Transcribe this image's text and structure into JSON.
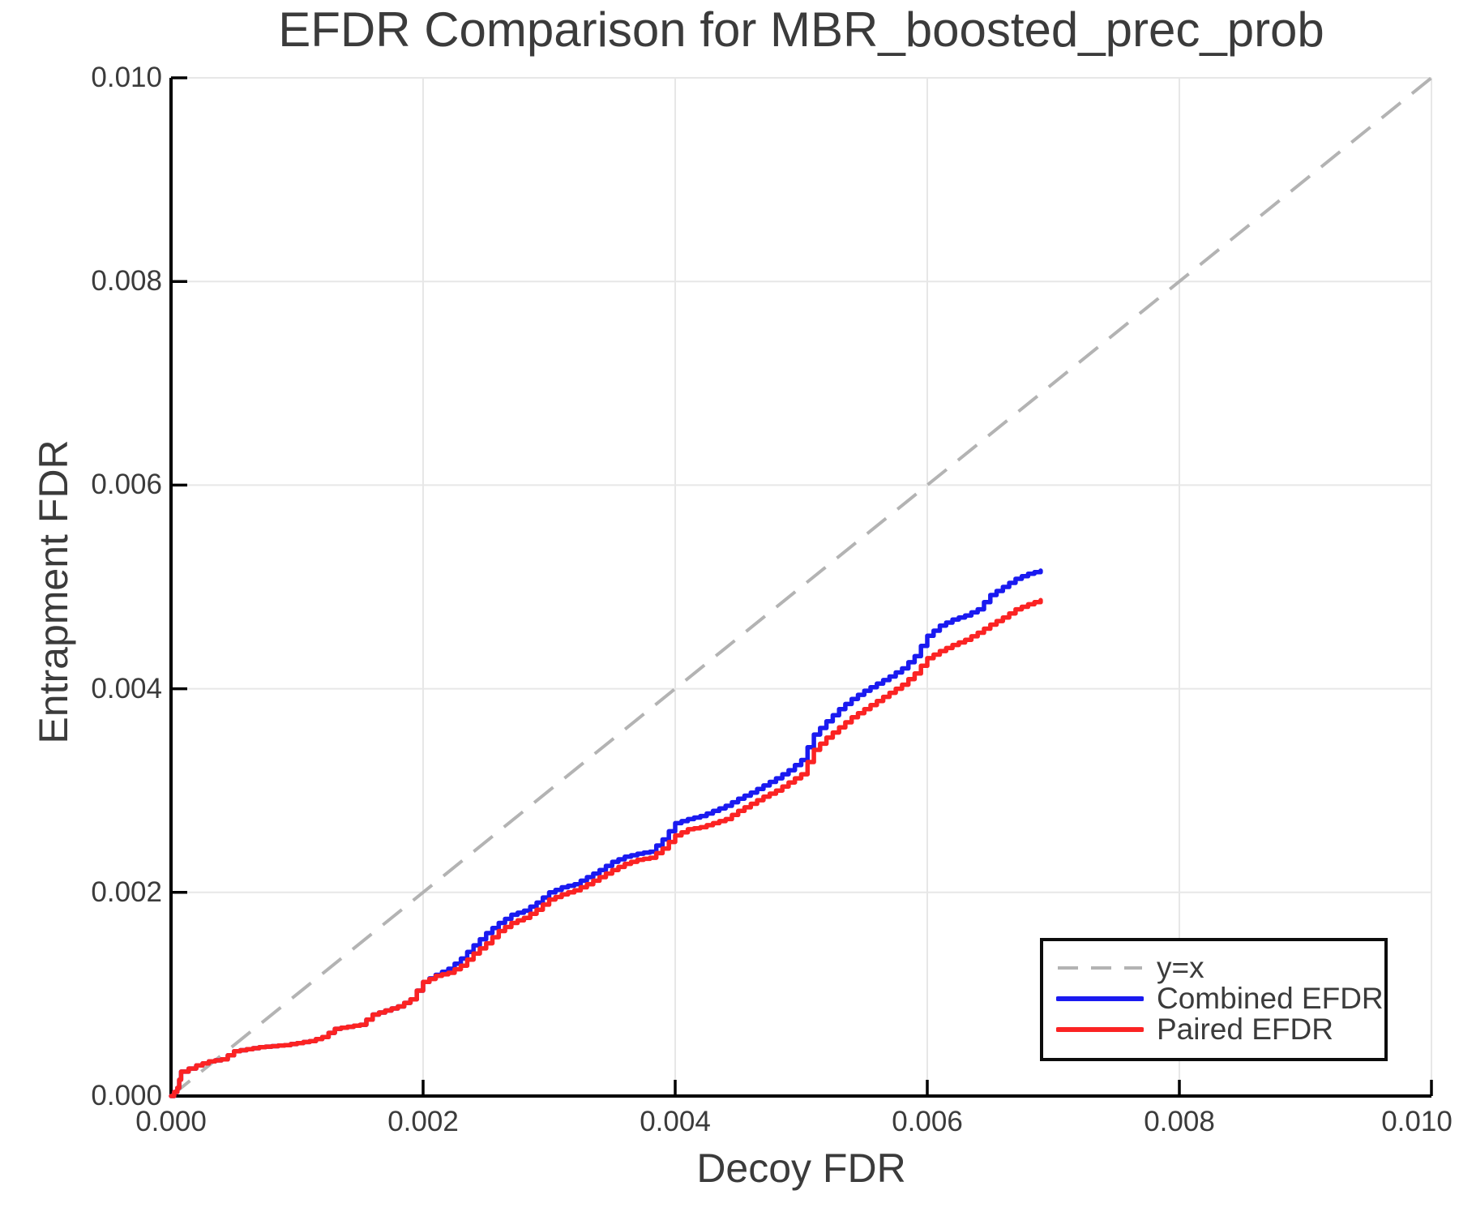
{
  "figure": {
    "title": "EFDR Comparison for MBR_boosted_prec_prob",
    "xlabel": "Decoy FDR",
    "ylabel": "Entrapment FDR"
  },
  "legend": {
    "items": [
      {
        "label": "y=x",
        "color": "#b3b3b3",
        "style": "dashed"
      },
      {
        "label": "Combined EFDR",
        "color": "#1a1af0",
        "style": "solid"
      },
      {
        "label": "Paired EFDR",
        "color": "#fb2323",
        "style": "solid"
      }
    ]
  },
  "colors": {
    "text": "#3b3b3b",
    "spine": "#000000",
    "gridline": "#e7e7e7",
    "identity_line": "#b3b3b3",
    "combined": "#1a1af0",
    "paired": "#fb2323",
    "background": "#ffffff"
  },
  "chart_data": {
    "type": "line",
    "title": "EFDR Comparison for MBR_boosted_prec_prob",
    "xlabel": "Decoy FDR",
    "ylabel": "Entrapment FDR",
    "xlim": [
      0,
      0.01
    ],
    "ylim": [
      0,
      0.01
    ],
    "grid": true,
    "legend_position": "lower right",
    "x_ticks": [
      {
        "value": 0.0,
        "label": "0.000"
      },
      {
        "value": 0.002,
        "label": "0.002"
      },
      {
        "value": 0.004,
        "label": "0.004"
      },
      {
        "value": 0.006,
        "label": "0.006"
      },
      {
        "value": 0.008,
        "label": "0.008"
      },
      {
        "value": 0.01,
        "label": "0.010"
      }
    ],
    "y_ticks": [
      {
        "value": 0.0,
        "label": "0.000"
      },
      {
        "value": 0.002,
        "label": "0.002"
      },
      {
        "value": 0.004,
        "label": "0.004"
      },
      {
        "value": 0.006,
        "label": "0.006"
      },
      {
        "value": 0.008,
        "label": "0.008"
      },
      {
        "value": 0.01,
        "label": "0.010"
      }
    ],
    "identity_line": {
      "name": "y=x",
      "from": [
        0,
        0
      ],
      "to": [
        0.01,
        0.01
      ],
      "color": "#b3b3b3",
      "dashed": true
    },
    "series": [
      {
        "name": "Combined EFDR",
        "color": "#1a1af0",
        "step": true,
        "points": [
          [
            0,
            0
          ],
          [
            5e-05,
            8e-05
          ],
          [
            8e-05,
            0.00024
          ],
          [
            0.0002,
            0.0003
          ],
          [
            0.0003,
            0.00034
          ],
          [
            0.0004,
            0.00036
          ],
          [
            0.0005,
            0.00044
          ],
          [
            0.0006,
            0.00046
          ],
          [
            0.0007,
            0.00048
          ],
          [
            0.0008,
            0.00049
          ],
          [
            0.0009,
            0.0005
          ],
          [
            0.001,
            0.00052
          ],
          [
            0.0011,
            0.00054
          ],
          [
            0.0012,
            0.00058
          ],
          [
            0.0013,
            0.00066
          ],
          [
            0.0014,
            0.00068
          ],
          [
            0.0015,
            0.0007
          ],
          [
            0.0016,
            0.0008
          ],
          [
            0.0017,
            0.00084
          ],
          [
            0.0018,
            0.00088
          ],
          [
            0.0019,
            0.00095
          ],
          [
            0.002,
            0.00112
          ],
          [
            0.0021,
            0.00119
          ],
          [
            0.0022,
            0.00125
          ],
          [
            0.0023,
            0.00135
          ],
          [
            0.0024,
            0.00148
          ],
          [
            0.0025,
            0.0016
          ],
          [
            0.0026,
            0.0017
          ],
          [
            0.0027,
            0.00178
          ],
          [
            0.0028,
            0.00182
          ],
          [
            0.0029,
            0.0019
          ],
          [
            0.003,
            0.002
          ],
          [
            0.0031,
            0.00205
          ],
          [
            0.0032,
            0.00208
          ],
          [
            0.0033,
            0.00215
          ],
          [
            0.0034,
            0.00222
          ],
          [
            0.0035,
            0.0023
          ],
          [
            0.0036,
            0.00235
          ],
          [
            0.0037,
            0.00238
          ],
          [
            0.0038,
            0.0024
          ],
          [
            0.0039,
            0.00252
          ],
          [
            0.004,
            0.00268
          ],
          [
            0.0041,
            0.00272
          ],
          [
            0.0042,
            0.00275
          ],
          [
            0.0043,
            0.0028
          ],
          [
            0.0044,
            0.00285
          ],
          [
            0.0045,
            0.00292
          ],
          [
            0.0046,
            0.00298
          ],
          [
            0.0047,
            0.00305
          ],
          [
            0.0048,
            0.00312
          ],
          [
            0.0049,
            0.0032
          ],
          [
            0.005,
            0.0033
          ],
          [
            0.0051,
            0.00355
          ],
          [
            0.0052,
            0.00368
          ],
          [
            0.0053,
            0.0038
          ],
          [
            0.0054,
            0.0039
          ],
          [
            0.0055,
            0.00398
          ],
          [
            0.0056,
            0.00405
          ],
          [
            0.0057,
            0.00412
          ],
          [
            0.0058,
            0.0042
          ],
          [
            0.0059,
            0.00432
          ],
          [
            0.006,
            0.00452
          ],
          [
            0.0061,
            0.00462
          ],
          [
            0.0062,
            0.00468
          ],
          [
            0.0063,
            0.00472
          ],
          [
            0.0064,
            0.00478
          ],
          [
            0.0065,
            0.00492
          ],
          [
            0.0066,
            0.005
          ],
          [
            0.0067,
            0.00508
          ],
          [
            0.0068,
            0.00513
          ],
          [
            0.0069,
            0.00516
          ]
        ]
      },
      {
        "name": "Paired EFDR",
        "color": "#fb2323",
        "step": true,
        "points": [
          [
            0,
            0
          ],
          [
            5e-05,
            8e-05
          ],
          [
            8e-05,
            0.00024
          ],
          [
            0.0002,
            0.0003
          ],
          [
            0.0003,
            0.00034
          ],
          [
            0.0004,
            0.00036
          ],
          [
            0.0005,
            0.00044
          ],
          [
            0.0006,
            0.00046
          ],
          [
            0.0007,
            0.00048
          ],
          [
            0.0008,
            0.00049
          ],
          [
            0.0009,
            0.0005
          ],
          [
            0.001,
            0.00052
          ],
          [
            0.0011,
            0.00054
          ],
          [
            0.0012,
            0.00058
          ],
          [
            0.0013,
            0.00066
          ],
          [
            0.0014,
            0.00068
          ],
          [
            0.0015,
            0.0007
          ],
          [
            0.0016,
            0.0008
          ],
          [
            0.0017,
            0.00084
          ],
          [
            0.0018,
            0.00088
          ],
          [
            0.0019,
            0.00095
          ],
          [
            0.002,
            0.00112
          ],
          [
            0.0021,
            0.00118
          ],
          [
            0.0022,
            0.00121
          ],
          [
            0.0023,
            0.00128
          ],
          [
            0.0024,
            0.0014
          ],
          [
            0.0025,
            0.0015
          ],
          [
            0.0026,
            0.00162
          ],
          [
            0.0027,
            0.0017
          ],
          [
            0.0028,
            0.00175
          ],
          [
            0.0029,
            0.00183
          ],
          [
            0.003,
            0.00193
          ],
          [
            0.0031,
            0.00198
          ],
          [
            0.0032,
            0.00202
          ],
          [
            0.0033,
            0.00208
          ],
          [
            0.0034,
            0.00215
          ],
          [
            0.0035,
            0.00222
          ],
          [
            0.0036,
            0.00228
          ],
          [
            0.0037,
            0.00232
          ],
          [
            0.0038,
            0.00234
          ],
          [
            0.0039,
            0.00243
          ],
          [
            0.004,
            0.00256
          ],
          [
            0.0041,
            0.00262
          ],
          [
            0.0042,
            0.00264
          ],
          [
            0.0043,
            0.00268
          ],
          [
            0.0044,
            0.00272
          ],
          [
            0.0045,
            0.0028
          ],
          [
            0.0046,
            0.00287
          ],
          [
            0.0047,
            0.00294
          ],
          [
            0.0048,
            0.003
          ],
          [
            0.0049,
            0.00308
          ],
          [
            0.005,
            0.00316
          ],
          [
            0.0051,
            0.0034
          ],
          [
            0.0052,
            0.00352
          ],
          [
            0.0053,
            0.00362
          ],
          [
            0.0054,
            0.00372
          ],
          [
            0.0055,
            0.0038
          ],
          [
            0.0056,
            0.00388
          ],
          [
            0.0057,
            0.00396
          ],
          [
            0.0058,
            0.00404
          ],
          [
            0.0059,
            0.00415
          ],
          [
            0.006,
            0.0043
          ],
          [
            0.0061,
            0.00437
          ],
          [
            0.0062,
            0.00443
          ],
          [
            0.0063,
            0.00448
          ],
          [
            0.0064,
            0.00455
          ],
          [
            0.0065,
            0.00463
          ],
          [
            0.0066,
            0.0047
          ],
          [
            0.0067,
            0.00478
          ],
          [
            0.0068,
            0.00483
          ],
          [
            0.0069,
            0.00487
          ]
        ]
      }
    ]
  }
}
